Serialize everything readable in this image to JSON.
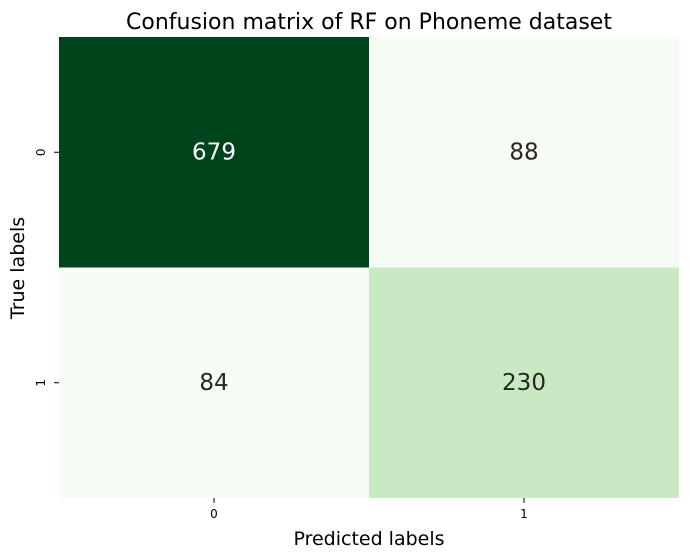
{
  "chart_data": {
    "type": "heatmap",
    "title": "Confusion matrix of RF on Phoneme dataset",
    "xlabel": "Predicted labels",
    "ylabel": "True labels",
    "x_categories": [
      "0",
      "1"
    ],
    "y_categories": [
      "0",
      "1"
    ],
    "values": [
      [
        679,
        88
      ],
      [
        84,
        230
      ]
    ],
    "colormap": "Greens",
    "colorbar": false
  }
}
